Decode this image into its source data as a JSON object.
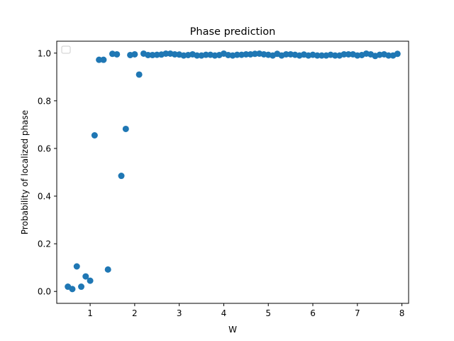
{
  "chart_data": {
    "type": "scatter",
    "title": "Phase prediction",
    "xlabel": "W",
    "ylabel": "Probability of localized phase",
    "xlim": [
      0.25,
      8.15
    ],
    "ylim": [
      -0.05,
      1.05
    ],
    "xticks": [
      1,
      2,
      3,
      4,
      5,
      6,
      7,
      8
    ],
    "yticks": [
      0.0,
      0.2,
      0.4,
      0.6,
      0.8,
      1.0
    ],
    "xtick_labels": [
      "1",
      "2",
      "3",
      "4",
      "5",
      "6",
      "7",
      "8"
    ],
    "ytick_labels": [
      "0.0",
      "0.2",
      "0.4",
      "0.6",
      "0.8",
      "1.0"
    ],
    "grid": false,
    "legend": {
      "placement": "top-left",
      "entries": []
    },
    "series": [
      {
        "color": "#1f77b4",
        "marker": "circle",
        "x": [
          0.5,
          0.6,
          0.7,
          0.8,
          0.9,
          1.0,
          1.1,
          1.2,
          1.3,
          1.4,
          1.5,
          1.6,
          1.7,
          1.8,
          1.9,
          2.0,
          2.1,
          2.2,
          2.3,
          2.4,
          2.5,
          2.6,
          2.7,
          2.8,
          2.9,
          3.0,
          3.1,
          3.2,
          3.3,
          3.4,
          3.5,
          3.6,
          3.7,
          3.8,
          3.9,
          4.0,
          4.1,
          4.2,
          4.3,
          4.4,
          4.5,
          4.6,
          4.7,
          4.8,
          4.9,
          5.0,
          5.1,
          5.2,
          5.3,
          5.4,
          5.5,
          5.6,
          5.7,
          5.8,
          5.9,
          6.0,
          6.1,
          6.2,
          6.3,
          6.4,
          6.5,
          6.6,
          6.7,
          6.8,
          6.9,
          7.0,
          7.1,
          7.2,
          7.3,
          7.4,
          7.5,
          7.6,
          7.7,
          7.8,
          7.9
        ],
        "y": [
          0.02,
          0.01,
          0.105,
          0.02,
          0.063,
          0.045,
          0.655,
          0.972,
          0.972,
          0.092,
          0.997,
          0.995,
          0.485,
          0.682,
          0.992,
          0.995,
          0.91,
          0.998,
          0.992,
          0.992,
          0.993,
          0.994,
          0.998,
          0.998,
          0.995,
          0.994,
          0.99,
          0.992,
          0.995,
          0.99,
          0.99,
          0.993,
          0.993,
          0.99,
          0.992,
          0.998,
          0.992,
          0.99,
          0.993,
          0.993,
          0.995,
          0.995,
          0.997,
          0.998,
          0.995,
          0.993,
          0.99,
          0.997,
          0.99,
          0.995,
          0.995,
          0.993,
          0.99,
          0.994,
          0.99,
          0.993,
          0.99,
          0.99,
          0.99,
          0.993,
          0.99,
          0.99,
          0.995,
          0.995,
          0.995,
          0.99,
          0.992,
          0.998,
          0.995,
          0.988,
          0.993,
          0.995,
          0.99,
          0.99,
          0.997
        ]
      }
    ]
  }
}
